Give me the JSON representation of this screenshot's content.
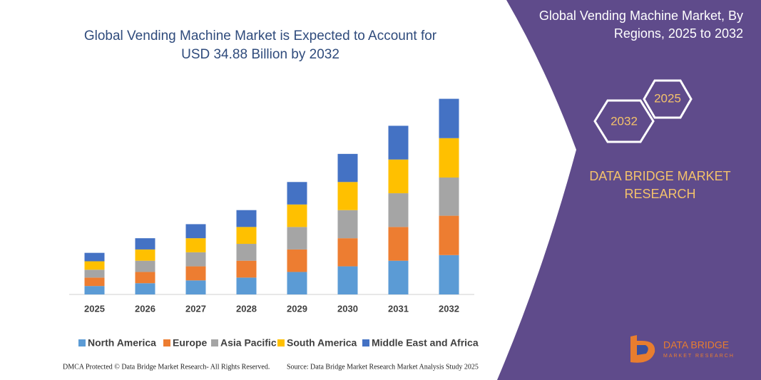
{
  "chart_data": {
    "type": "stacked_bar",
    "title": "Global Vending Machine Market is Expected to Account for USD 34.88 Billion by 2032",
    "categories": [
      "2025",
      "2026",
      "2027",
      "2028",
      "2029",
      "2030",
      "2031",
      "2032"
    ],
    "series": [
      {
        "name": "North America",
        "color": "#5b9bd5",
        "values": [
          1.5,
          2.0,
          2.5,
          3.0,
          4.0,
          5.0,
          6.0,
          7.0
        ]
      },
      {
        "name": "Europe",
        "color": "#ed7d31",
        "values": [
          1.5,
          2.0,
          2.5,
          3.0,
          4.0,
          5.0,
          6.0,
          7.0
        ]
      },
      {
        "name": "Asia Pacific",
        "color": "#a5a5a5",
        "values": [
          1.4,
          2.0,
          2.5,
          3.0,
          4.0,
          5.0,
          6.0,
          6.8
        ]
      },
      {
        "name": "South America",
        "color": "#ffc000",
        "values": [
          1.5,
          2.0,
          2.5,
          3.0,
          4.0,
          5.0,
          6.0,
          7.0
        ]
      },
      {
        "name": "Middle East and Africa",
        "color": "#4472c4",
        "values": [
          1.5,
          2.0,
          2.5,
          3.0,
          4.0,
          5.0,
          6.0,
          7.0
        ]
      }
    ],
    "ylim": [
      0,
      35
    ],
    "legend": "bottom"
  },
  "side_panel": {
    "title": "Global Vending Machine Market, By Regions, 2025 to 2032",
    "hexagons": [
      "2032",
      "2025"
    ],
    "brand": "DATA BRIDGE MARKET RESEARCH",
    "logo_lines": [
      "DATA BRIDGE",
      "MARKET RESEARCH"
    ]
  },
  "footer": {
    "copyright": "DMCA Protected © Data Bridge Market Research- All Rights Reserved.",
    "source": "Source: Data Bridge Market Research Market Analysis Study 2025"
  }
}
